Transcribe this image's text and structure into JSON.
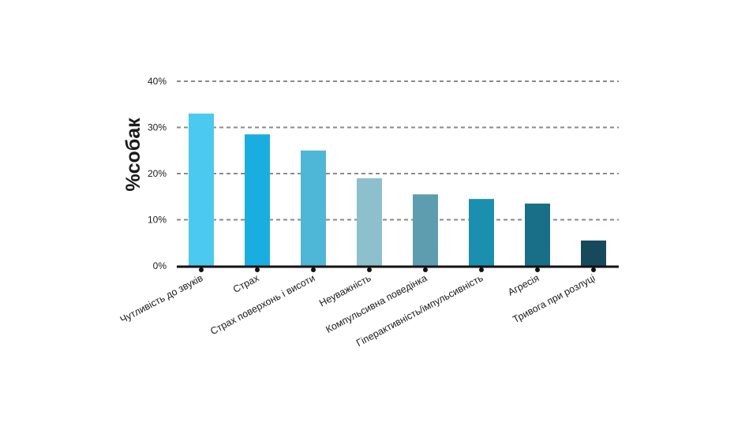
{
  "chart_data": {
    "type": "bar",
    "ylabel": "%собак",
    "xlabel": "",
    "ylim": [
      0,
      40
    ],
    "yticks": [
      0,
      10,
      20,
      30,
      40
    ],
    "ytick_labels": [
      "0%",
      "10%",
      "20%",
      "30%",
      "40%"
    ],
    "grid": "horizontal-dashed",
    "categories": [
      "Чутливість до звуків",
      "Страх",
      "Страх поверхонь і висоти",
      "Неуважність",
      "Компульсивна поведінка",
      "Гіперактивність/імпульсивність",
      "Агресія",
      "Тривога при розлуці"
    ],
    "values": [
      33,
      28.5,
      25,
      19,
      15.5,
      14.5,
      13.5,
      5.5
    ],
    "bar_colors": [
      "#4cc9ee",
      "#1aaee0",
      "#4eb6d6",
      "#8dbfcc",
      "#5e9daf",
      "#1b8fb0",
      "#1a6f88",
      "#17495c"
    ],
    "axis_color": "#111111",
    "grid_color": "#8a8a8a"
  }
}
